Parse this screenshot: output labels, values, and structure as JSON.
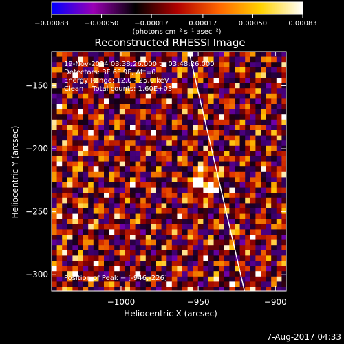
{
  "chart_data": {
    "type": "heatmap",
    "title": "Reconstructed RHESSI Image",
    "xlabel": "Heliocentric X (arcsec)",
    "ylabel": "Heliocentric Y (arcsec)",
    "xlim": [
      -1045,
      -893
    ],
    "ylim": [
      -313,
      -123
    ],
    "x_ticks": [
      {
        "value": -1000,
        "label": "−1000"
      },
      {
        "value": -950,
        "label": "−950"
      },
      {
        "value": -900,
        "label": "−900"
      }
    ],
    "y_ticks": [
      {
        "value": -150,
        "label": "−150"
      },
      {
        "value": -200,
        "label": "−200"
      },
      {
        "value": -250,
        "label": "−250"
      },
      {
        "value": -300,
        "label": "−300"
      }
    ],
    "colorbar": {
      "range": [
        -0.00083,
        0.00083
      ],
      "ticks": [
        {
          "value": -0.00083,
          "label": "−0.00083"
        },
        {
          "value": -0.0005,
          "label": "−0.00050"
        },
        {
          "value": -0.00017,
          "label": "−0.00017"
        },
        {
          "value": 0.00017,
          "label": "0.00017"
        },
        {
          "value": 0.0005,
          "label": "0.00050"
        },
        {
          "value": 0.00083,
          "label": "0.00083"
        }
      ],
      "units": "(photons cm⁻² s⁻¹ asec⁻²)",
      "colors": [
        "#0000ff",
        "#9a00b4",
        "#000000",
        "#b00000",
        "#ff6600",
        "#ffd200",
        "#ffffff"
      ]
    },
    "annotations": {
      "time_range": "19-Nov-2014 03:38:26.000 to 03:48:26.000",
      "detectors": "Detectors: 3F 6F 9F, Att=0",
      "energy_range": "Energy Range: 12.0 - 25.0 keV",
      "method_counts": "Clean    Total counts: 1.60E+03",
      "peak": "Position of Peak = [-946,-226]"
    },
    "peak": {
      "x": -946,
      "y": -226
    },
    "limb_line": [
      {
        "x": -956,
        "y": -123
      },
      {
        "x": -920,
        "y": -313
      }
    ],
    "timestamp": "7-Aug-2017 04:33"
  }
}
